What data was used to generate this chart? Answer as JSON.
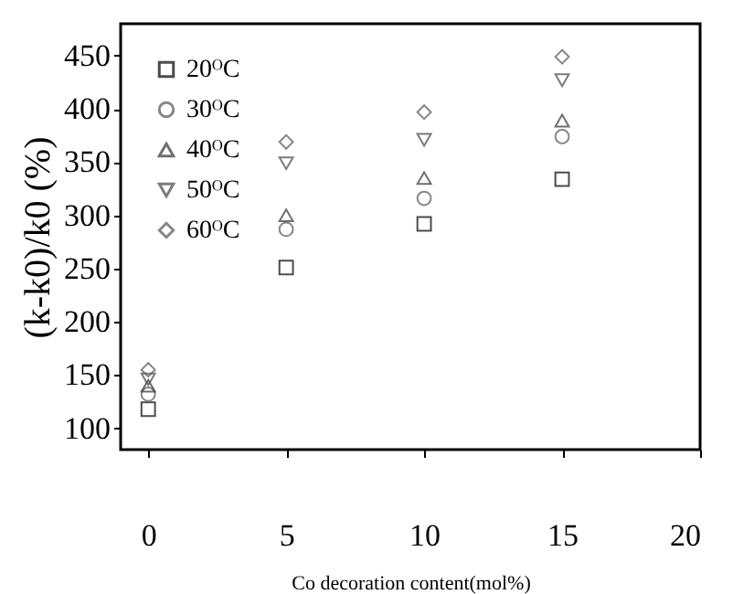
{
  "chart_data": {
    "type": "scatter",
    "xlabel": "Co decoration content(mol%)",
    "ylabel": "(k-k0)/k0  (%)",
    "x": [
      0,
      5,
      10,
      15
    ],
    "series": [
      {
        "name": "20ᴼC",
        "color": "#000000",
        "marker": "square",
        "values": [
          118,
          251,
          292,
          334
        ]
      },
      {
        "name": "30ᴼC",
        "color": "#555555",
        "marker": "circle",
        "values": [
          132,
          287,
          316,
          374
        ]
      },
      {
        "name": "40ᴼC",
        "color": "#333333",
        "marker": "triangle",
        "values": [
          140,
          300,
          335,
          389
        ]
      },
      {
        "name": "50ᴼC",
        "color": "#444444",
        "marker": "triangle-down",
        "values": [
          146,
          349,
          371,
          427
        ]
      },
      {
        "name": "60ᴼC",
        "color": "#555555",
        "marker": "diamond",
        "values": [
          155,
          369,
          397,
          449
        ]
      }
    ],
    "xlim": [
      -1,
      20
    ],
    "xticks": [
      0,
      5,
      10,
      15,
      20
    ],
    "ylim": [
      80,
      480
    ],
    "yticks": [
      100,
      150,
      200,
      250,
      300,
      350,
      400,
      450
    ],
    "grid": false,
    "legend": "top left"
  }
}
